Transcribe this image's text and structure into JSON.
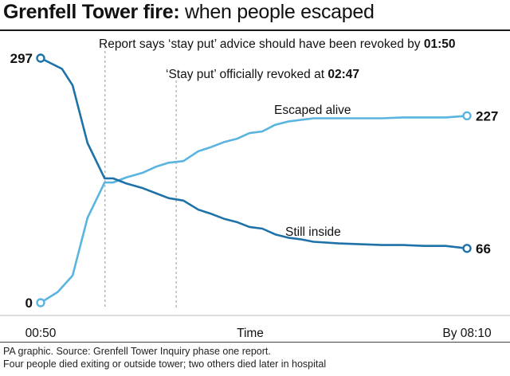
{
  "header": {
    "title_bold": "Grenfell Tower fire:",
    "title_rest": " when people escaped"
  },
  "footer": {
    "source": "PA graphic. Source: Grenfell Tower Inquiry phase one report.",
    "note": "Four people died exiting or outside tower; two others died later in hospital"
  },
  "chart_data": {
    "type": "line",
    "title": "Grenfell Tower fire: when people escaped",
    "xlabel": "Time",
    "x_ticks": [
      {
        "t": 0,
        "label": "00:50"
      },
      {
        "t": 1,
        "label": "By 08:10"
      }
    ],
    "ylim": [
      0,
      297
    ],
    "annotations": [
      {
        "t": 0.151,
        "text": "Report says ‘stay put’ advice should have been revoked by ",
        "bold": "01:50"
      },
      {
        "t": 0.318,
        "text": "‘Stay put’ officially revoked at ",
        "bold": "02:47"
      }
    ],
    "series": [
      {
        "name": "Escaped alive",
        "color": "#5ab4e0",
        "start_label": "0",
        "end_label": "227",
        "x": [
          0,
          0.04,
          0.075,
          0.11,
          0.15,
          0.17,
          0.2,
          0.24,
          0.27,
          0.3,
          0.335,
          0.37,
          0.4,
          0.43,
          0.46,
          0.49,
          0.52,
          0.55,
          0.58,
          0.61,
          0.64,
          0.7,
          0.75,
          0.8,
          0.85,
          0.9,
          0.95,
          1
        ],
        "y": [
          0,
          13,
          33,
          103,
          146,
          146,
          152,
          158,
          165,
          170,
          172,
          184,
          189,
          195,
          199,
          206,
          208,
          216,
          220,
          222,
          224,
          224,
          224,
          224,
          225,
          225,
          225,
          227
        ]
      },
      {
        "name": "Still inside",
        "color": "#1f72a8",
        "start_label": "297",
        "end_label": "66",
        "x": [
          0,
          0.05,
          0.075,
          0.11,
          0.15,
          0.17,
          0.2,
          0.24,
          0.27,
          0.3,
          0.335,
          0.37,
          0.4,
          0.43,
          0.46,
          0.49,
          0.52,
          0.55,
          0.58,
          0.61,
          0.64,
          0.7,
          0.75,
          0.8,
          0.85,
          0.9,
          0.95,
          1
        ],
        "y": [
          297,
          284,
          264,
          194,
          151,
          151,
          145,
          139,
          133,
          127,
          124,
          113,
          108,
          102,
          98,
          92,
          90,
          83,
          79,
          77,
          74,
          72,
          71,
          70,
          70,
          69,
          69,
          66
        ]
      }
    ]
  }
}
